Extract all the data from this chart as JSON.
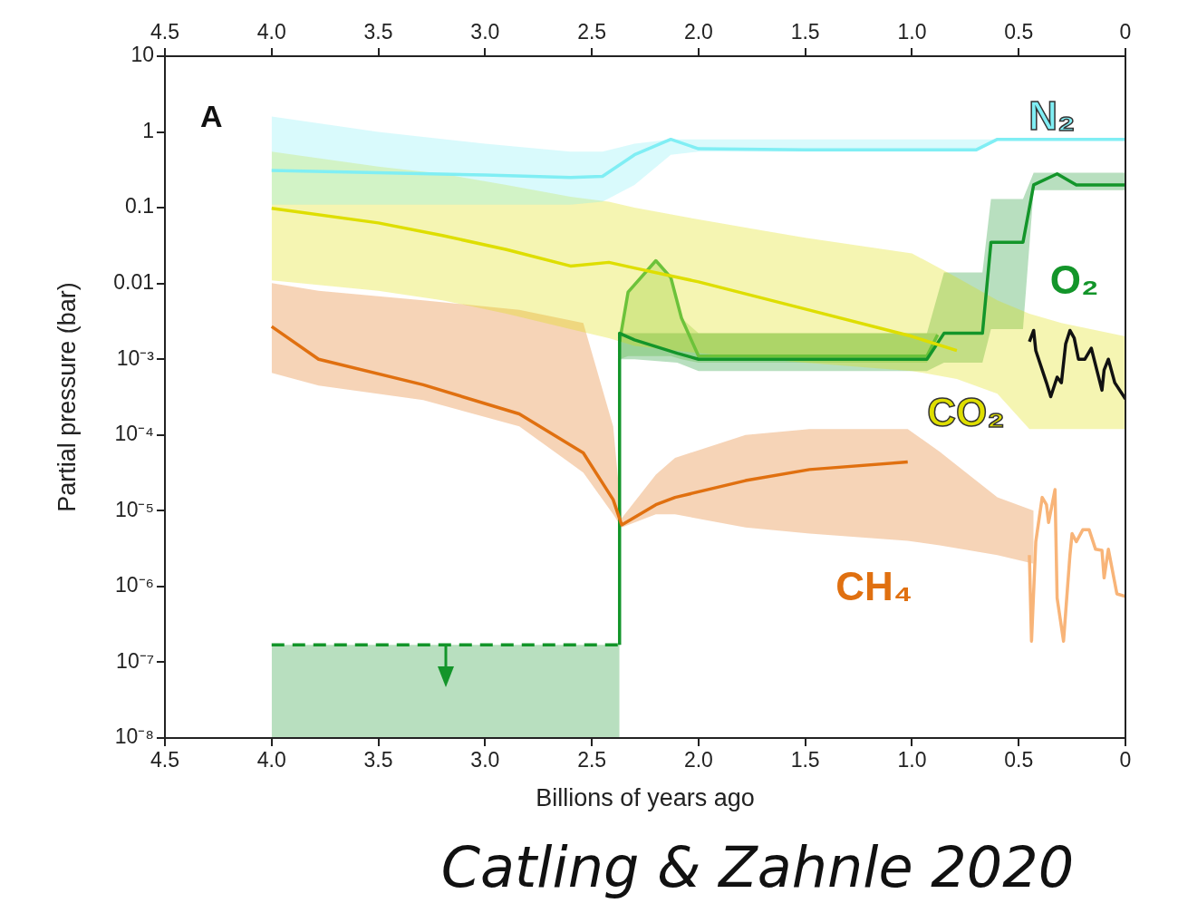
{
  "chart_data": {
    "type": "line",
    "xlabel": "Billions of years ago",
    "ylabel": "Partial pressure (bar)",
    "log": "y",
    "grid": false,
    "marker": "none",
    "xlim": [
      4.5,
      0
    ],
    "xticks": [
      4.5,
      {
        "value": 4,
        "label": "4.0"
      },
      3.5,
      {
        "value": 3,
        "label": "3.0"
      },
      2.5,
      {
        "value": 2,
        "label": "2.0"
      },
      1.5,
      {
        "value": 1,
        "label": "1.0"
      },
      0.5,
      0
    ],
    "x2lim": [
      4.5,
      0
    ],
    "x2ticks": [
      4.5,
      {
        "value": 4,
        "label": "4.0"
      },
      3.5,
      {
        "value": 3,
        "label": "3.0"
      },
      2.5,
      {
        "value": 2,
        "label": "2.0"
      },
      1.5,
      {
        "value": 1,
        "label": "1.0"
      },
      0.5,
      0
    ],
    "ylim": [
      1e-08,
      10
    ],
    "yticks": [
      10,
      1,
      0.1,
      0.01,
      {
        "value": 0.001,
        "label": "10⁻³"
      },
      {
        "value": 0.0001,
        "label": "10⁻⁴"
      },
      {
        "value": 1e-05,
        "label": "10⁻⁵"
      },
      {
        "value": 1e-06,
        "label": "10⁻⁶"
      },
      {
        "value": 1e-07,
        "label": "10⁻⁷"
      },
      {
        "value": 1e-08,
        "label": "10⁻⁸"
      }
    ],
    "annotations": [
      "A",
      "Catling & Zahnle 2020"
    ],
    "series": [
      {
        "name": "N₂",
        "color": "#80eef4",
        "x": [
          4.0,
          3.5,
          3.0,
          2.6,
          2.45,
          2.3,
          2.13,
          2.0,
          1.5,
          1.0,
          0.7,
          0.6,
          0
        ],
        "values": [
          0.31,
          0.29,
          0.27,
          0.25,
          0.26,
          0.5,
          0.8,
          0.6,
          0.58,
          0.58,
          0.58,
          0.8,
          0.8
        ],
        "upper": [
          1.6,
          1.0,
          0.7,
          0.55,
          0.55,
          0.7,
          0.8,
          0.8,
          0.8,
          0.8,
          0.8,
          0.8,
          0.8
        ],
        "lower": [
          0.11,
          0.11,
          0.11,
          0.11,
          0.12,
          0.2,
          0.5,
          0.55,
          0.55,
          0.55,
          0.55,
          0.8,
          0.8
        ]
      },
      {
        "name": "CO₂",
        "color": "#dede00",
        "x": [
          4.0,
          3.5,
          3.2,
          2.9,
          2.6,
          2.42,
          2.3,
          2.0,
          1.5,
          1.0,
          0.79,
          0.6,
          0.45,
          0.3,
          0
        ],
        "values": [
          0.098,
          0.063,
          0.043,
          0.028,
          0.017,
          0.019,
          0.016,
          0.0105,
          0.0046,
          0.002,
          0.0013,
          null,
          null,
          null,
          null
        ],
        "upper": [
          0.55,
          0.35,
          0.28,
          0.2,
          0.14,
          0.12,
          0.1,
          0.07,
          0.04,
          0.025,
          0.012,
          0.006,
          0.004,
          0.003,
          0.002
        ],
        "lower": [
          0.011,
          0.008,
          0.006,
          0.004,
          0.0025,
          0.0019,
          0.0015,
          0.0012,
          0.0009,
          0.0007,
          0.00055,
          0.00035,
          0.00012,
          0.00012,
          0.00012
        ]
      },
      {
        "name": "CH₄",
        "color": "#e07010",
        "x": [
          4.0,
          3.78,
          3.29,
          2.84,
          2.54,
          2.4,
          2.36,
          2.2,
          2.11,
          1.78,
          1.48,
          1.02,
          0.87,
          0.6,
          0.43
        ],
        "values": [
          0.0027,
          0.001,
          0.00046,
          0.00019,
          5.8e-05,
          1.4e-05,
          6.5e-06,
          1.2e-05,
          1.5e-05,
          2.5e-05,
          3.5e-05,
          4.4e-05,
          null,
          null,
          null
        ],
        "upper": [
          0.0101,
          0.008,
          0.006,
          0.0045,
          0.003,
          0.00013,
          8e-06,
          3e-05,
          5e-05,
          0.0001,
          0.00012,
          0.00012,
          6e-05,
          1.5e-05,
          1e-05
        ],
        "lower": [
          0.00066,
          0.00045,
          0.00029,
          0.00013,
          3.2e-05,
          9e-06,
          6e-06,
          9e-06,
          9e-06,
          6e-06,
          5e-06,
          4e-06,
          3.5e-06,
          2.6e-06,
          2e-06
        ]
      },
      {
        "name": "O₂",
        "color": "#13952a",
        "x": [
          2.37,
          2.37,
          2.3,
          2.1,
          2.0,
          1.5,
          0.93,
          0.85,
          0.67,
          0.63,
          0.48,
          0.43,
          0.32,
          0.23,
          0
        ],
        "values": [
          1.7e-07,
          0.0022,
          0.0018,
          0.0012,
          0.001,
          0.001,
          0.001,
          0.0022,
          0.0022,
          0.035,
          0.035,
          0.2,
          0.28,
          0.2,
          0.2
        ],
        "upper": [
          1.7e-07,
          0.0022,
          0.0022,
          0.0022,
          0.0022,
          0.0022,
          0.0022,
          0.014,
          0.014,
          0.13,
          0.13,
          0.29,
          0.29,
          0.29,
          0.29
        ],
        "lower": [
          1.7e-07,
          0.001,
          0.001,
          0.0009,
          0.0007,
          0.0007,
          0.0007,
          0.0009,
          0.0009,
          0.0025,
          0.0025,
          0.17,
          0.17,
          0.17,
          0.17
        ]
      },
      {
        "color": "#13952a",
        "line_style": "dashed",
        "x": [
          4.0,
          2.37
        ],
        "values": [
          1.7e-07,
          1.7e-07
        ],
        "upper": [
          1.7e-07,
          1.7e-07
        ],
        "lower": [
          1e-08,
          1e-08
        ]
      },
      {
        "color": "#6cc23a",
        "x": [
          2.37,
          2.33,
          2.2,
          2.13,
          2.08,
          2.0,
          1.5,
          0.93,
          0.88
        ],
        "values": [
          0.0017,
          0.0077,
          0.02,
          0.012,
          0.0035,
          0.0011,
          0.0011,
          0.0011,
          0.0021
        ],
        "upper": [
          0.0017,
          0.0077,
          0.02,
          0.012,
          0.0035,
          0.0022,
          0.0022,
          0.0022,
          0.0022
        ],
        "lower": [
          0.001,
          0.0011,
          0.0011,
          0.0011,
          0.001,
          0.0009,
          0.0009,
          0.0009,
          0.0021
        ]
      },
      {
        "color": "#111111",
        "x": [
          0.45,
          0.43,
          0.42,
          0.37,
          0.35,
          0.32,
          0.3,
          0.28,
          0.26,
          0.24,
          0.22,
          0.19,
          0.16,
          0.13,
          0.11,
          0.1,
          0.08,
          0.05,
          0
        ],
        "values": [
          0.0017,
          0.0024,
          0.0013,
          0.00049,
          0.00032,
          0.00058,
          0.00049,
          0.0016,
          0.0024,
          0.0019,
          0.001,
          0.001,
          0.0014,
          0.00065,
          0.00039,
          0.00072,
          0.001,
          0.00049,
          0.0003
        ]
      },
      {
        "color": "#f8b478",
        "x": [
          0.45,
          0.44,
          0.42,
          0.39,
          0.37,
          0.36,
          0.33,
          0.32,
          0.29,
          0.26,
          0.25,
          0.23,
          0.2,
          0.17,
          0.14,
          0.11,
          0.1,
          0.08,
          0.04,
          0
        ],
        "values": [
          2.6e-06,
          1.9e-07,
          3.9e-06,
          1.5e-05,
          1.2e-05,
          7e-06,
          1.9e-05,
          7e-07,
          1.9e-07,
          2.6e-06,
          5e-06,
          3.9e-06,
          5.6e-06,
          5.6e-06,
          3.1e-06,
          3e-06,
          1.3e-06,
          3.1e-06,
          8e-07,
          7.4e-07
        ]
      }
    ]
  }
}
